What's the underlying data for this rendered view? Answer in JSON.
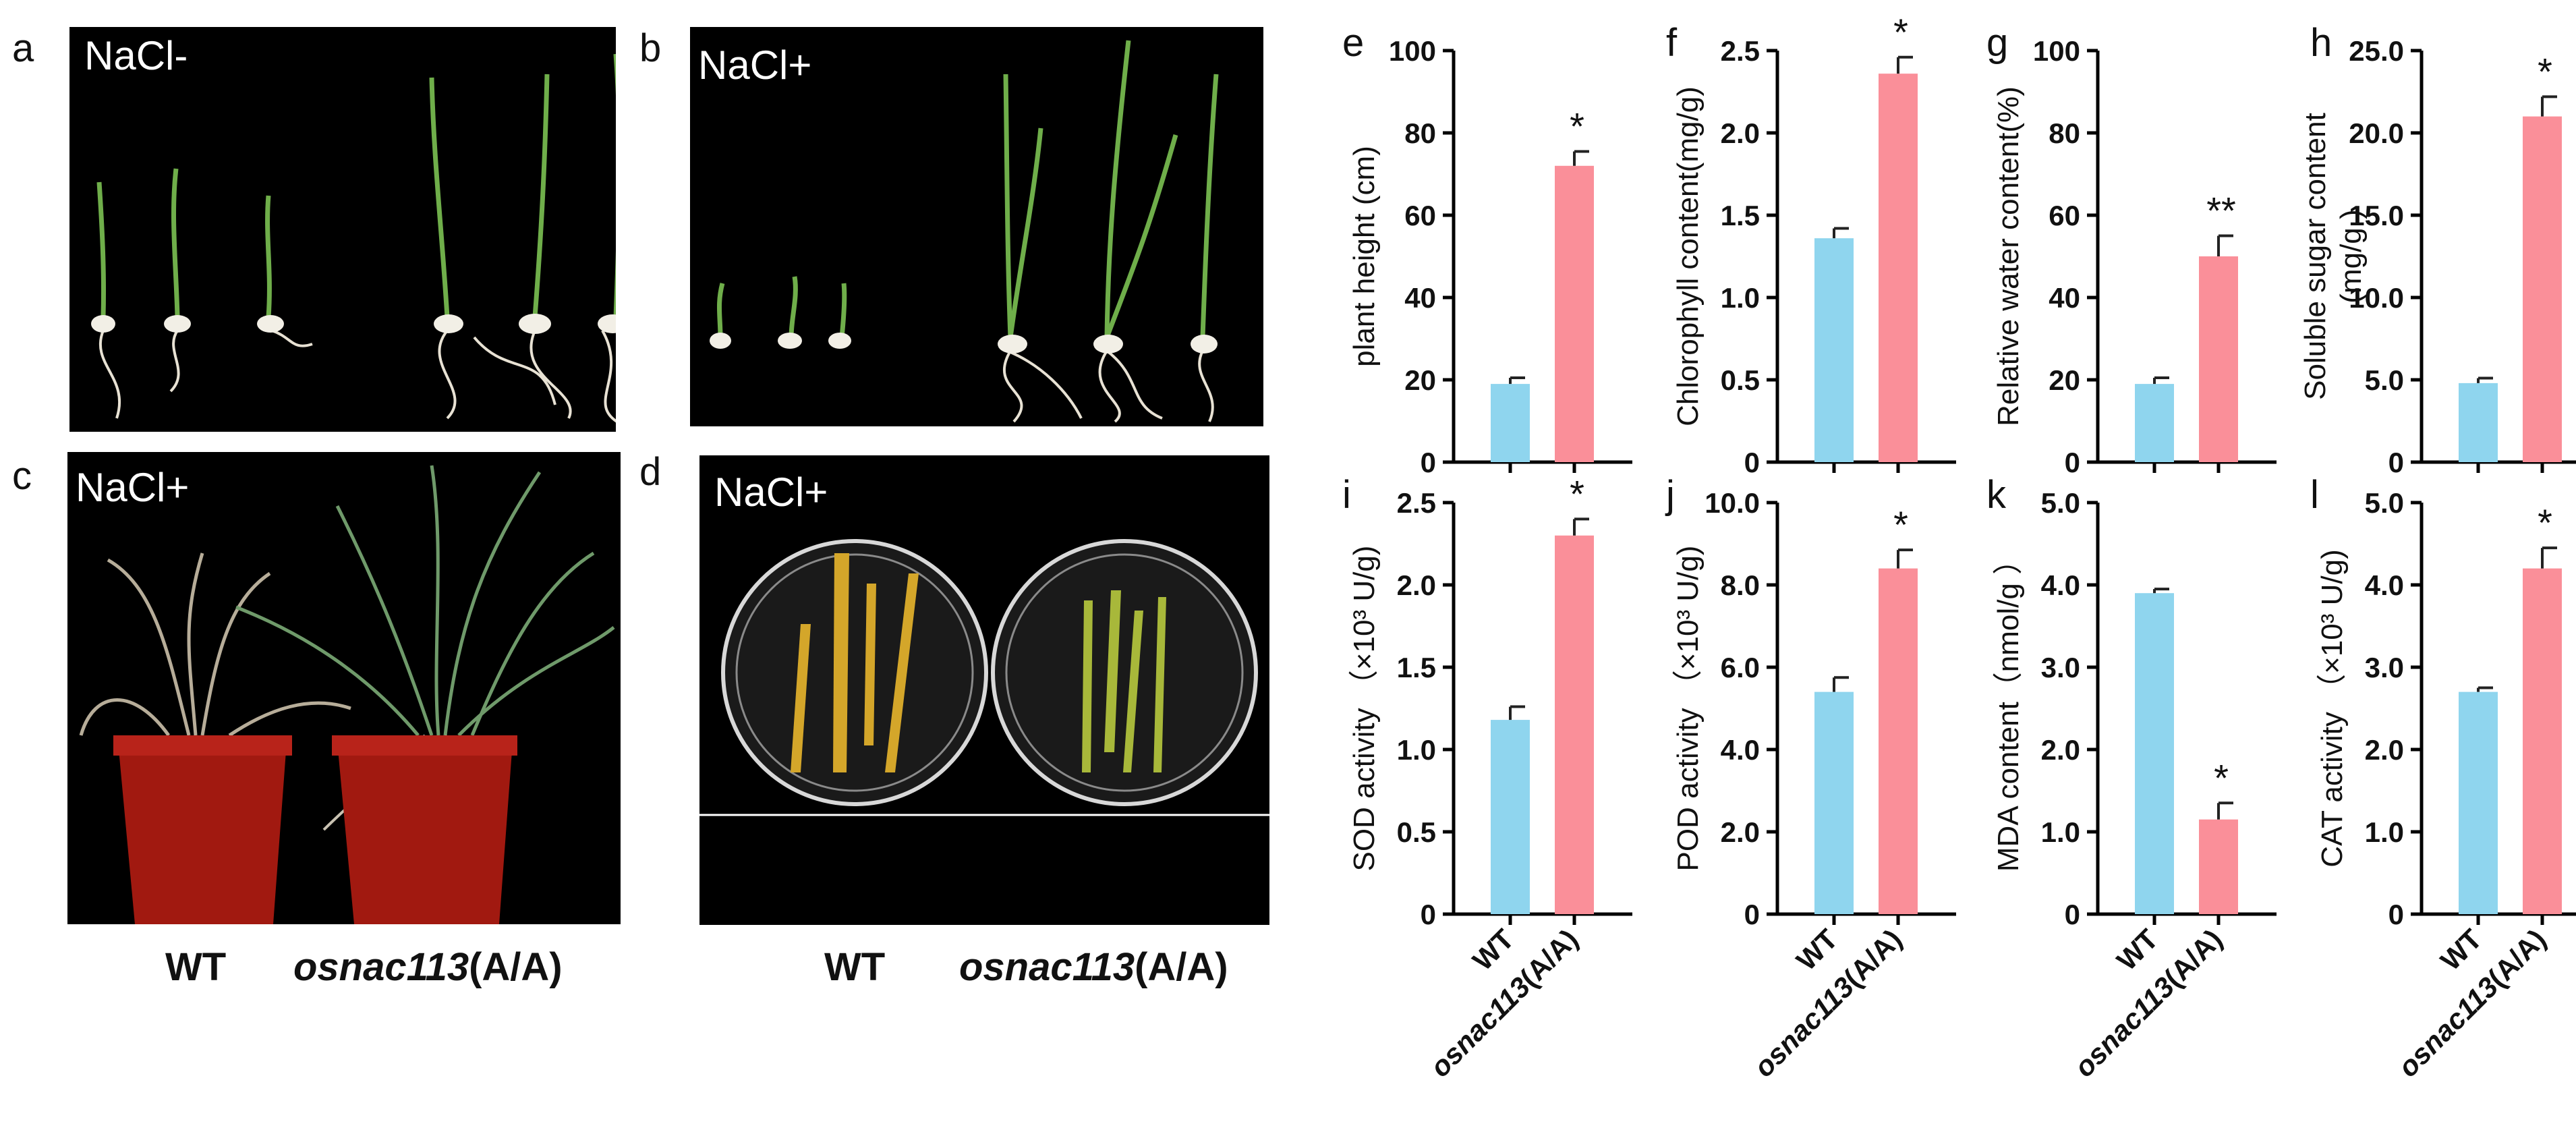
{
  "photo_panels": [
    {
      "letter": "a",
      "tag": "NaCl-"
    },
    {
      "letter": "b",
      "tag": "NaCl+"
    },
    {
      "letter": "c",
      "tag": "NaCl+"
    },
    {
      "letter": "d",
      "tag": "NaCl+"
    }
  ],
  "captions": {
    "c": {
      "wt": "WT",
      "mutant": "osnac113",
      "suffix": "(A/A)"
    },
    "d": {
      "wt": "WT",
      "mutant": "osnac113",
      "suffix": "(A/A)"
    }
  },
  "colors": {
    "wt": "#8fd5ee",
    "mutant": "#fa8f99",
    "axis": "#000000"
  },
  "chart_data": [
    {
      "panel": "e",
      "type": "bar",
      "ylabel": "plant height (cm)",
      "ylim": [
        0,
        100
      ],
      "ticks": [
        "0",
        "20",
        "40",
        "60",
        "80",
        "100"
      ],
      "categories": [
        "WT",
        "osnac113(A/A)"
      ],
      "values": [
        19,
        72
      ],
      "errors": [
        1.5,
        3.5
      ],
      "sig": [
        "",
        "*"
      ]
    },
    {
      "panel": "f",
      "type": "bar",
      "ylabel": "Chlorophyll content(mg/g)",
      "ylim": [
        0,
        2.5
      ],
      "ticks": [
        "0",
        "0.5",
        "1.0",
        "1.5",
        "2.0",
        "2.5"
      ],
      "categories": [
        "WT",
        "osnac113(A/A)"
      ],
      "values": [
        1.36,
        2.36
      ],
      "errors": [
        0.06,
        0.1
      ],
      "sig": [
        "",
        "*"
      ]
    },
    {
      "panel": "g",
      "type": "bar",
      "ylabel": "Relative water content(%)",
      "ylim": [
        0,
        100
      ],
      "ticks": [
        "0",
        "20",
        "40",
        "60",
        "80",
        "100"
      ],
      "categories": [
        "WT",
        "osnac113(A/A)"
      ],
      "values": [
        19,
        50
      ],
      "errors": [
        1.5,
        5
      ],
      "sig": [
        "",
        "**"
      ]
    },
    {
      "panel": "h",
      "type": "bar",
      "ylabel": "Soluble sugar content",
      "ylabel2": "(mg/g )",
      "ylim": [
        0,
        25
      ],
      "ticks": [
        "0",
        "5.0",
        "10.0",
        "15.0",
        "20.0",
        "25.0"
      ],
      "categories": [
        "WT",
        "osnac113(A/A)"
      ],
      "values": [
        4.8,
        21
      ],
      "errors": [
        0.3,
        1.2
      ],
      "sig": [
        "",
        "*"
      ]
    },
    {
      "panel": "i",
      "type": "bar",
      "ylabel": "SOD activity （×10³ U/g)",
      "ylim": [
        0,
        2.5
      ],
      "ticks": [
        "0",
        "0.5",
        "1.0",
        "1.5",
        "2.0",
        "2.5"
      ],
      "categories": [
        "WT",
        "osnac113(A/A)"
      ],
      "values": [
        1.18,
        2.3
      ],
      "errors": [
        0.08,
        0.1
      ],
      "sig": [
        "",
        "*"
      ]
    },
    {
      "panel": "j",
      "type": "bar",
      "ylabel": "POD activity （×10³ U/g)",
      "ylim": [
        0,
        10
      ],
      "ticks": [
        "0",
        "2.0",
        "4.0",
        "6.0",
        "8.0",
        "10.0"
      ],
      "categories": [
        "WT",
        "osnac113(A/A)"
      ],
      "values": [
        5.4,
        8.4
      ],
      "errors": [
        0.35,
        0.45
      ],
      "sig": [
        "",
        "*"
      ]
    },
    {
      "panel": "k",
      "type": "bar",
      "ylabel": "MDA content（nmol/g ）",
      "ylim": [
        0,
        5
      ],
      "ticks": [
        "0",
        "1.0",
        "2.0",
        "3.0",
        "4.0",
        "5.0"
      ],
      "categories": [
        "WT",
        "osnac113(A/A)"
      ],
      "values": [
        3.9,
        1.15
      ],
      "errors": [
        0.05,
        0.2
      ],
      "sig": [
        "",
        "*"
      ]
    },
    {
      "panel": "l",
      "type": "bar",
      "ylabel": "CAT activity （×10³ U/g)",
      "ylim": [
        0,
        5
      ],
      "ticks": [
        "0",
        "1.0",
        "2.0",
        "3.0",
        "4.0",
        "5.0"
      ],
      "categories": [
        "WT",
        "osnac113(A/A)"
      ],
      "values": [
        2.7,
        4.2
      ],
      "errors": [
        0.05,
        0.25
      ],
      "sig": [
        "",
        "*"
      ]
    }
  ]
}
